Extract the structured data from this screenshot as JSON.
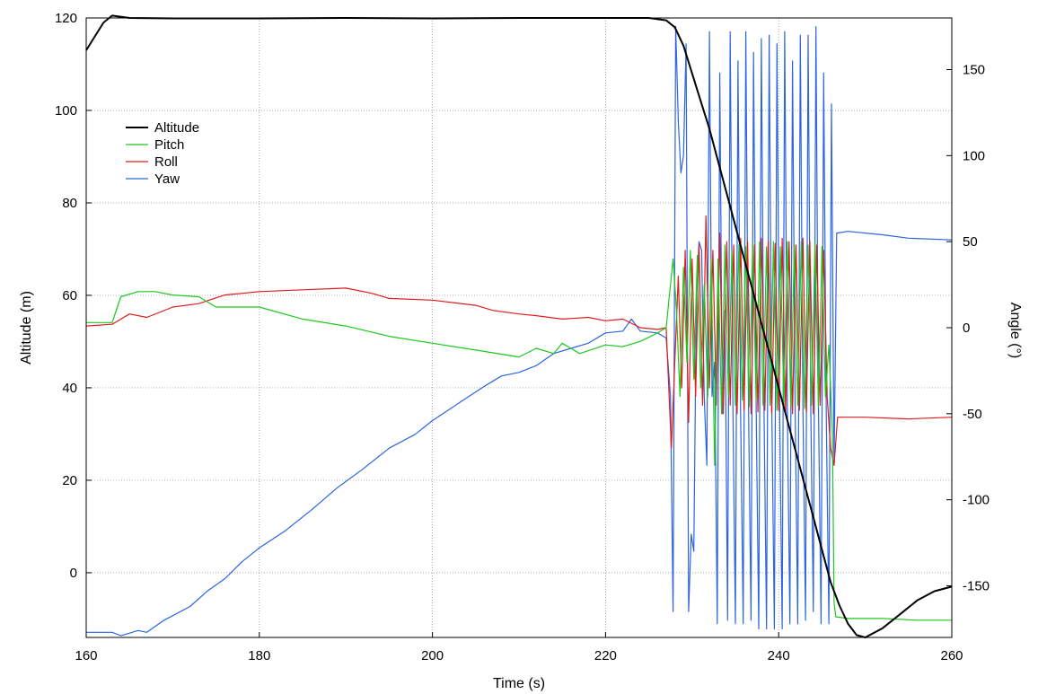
{
  "chart_data": {
    "type": "line",
    "title": "",
    "xlabel": "Time (s)",
    "ylabel_left": "Altitude (m)",
    "ylabel_right": "Angle (°)",
    "xlim": [
      160,
      260
    ],
    "ylim_left": [
      -14,
      120
    ],
    "ylim_right": [
      -180,
      180
    ],
    "x_ticks": [
      "160",
      "180",
      "200",
      "220",
      "240",
      "260"
    ],
    "y_left_ticks": [
      "0",
      "20",
      "40",
      "60",
      "80",
      "100",
      "120"
    ],
    "y_right_ticks": [
      "-150",
      "-100",
      "-50",
      "0",
      "50",
      "100",
      "150"
    ],
    "grid": true,
    "legend_position": "upper-left",
    "legend": [
      "Altitude",
      "Pitch",
      "Roll",
      "Yaw"
    ],
    "series": [
      {
        "name": "Altitude",
        "axis": "left",
        "color": "#000000",
        "points": [
          [
            160,
            113
          ],
          [
            161,
            116
          ],
          [
            162,
            119
          ],
          [
            163,
            120.5
          ],
          [
            165,
            120
          ],
          [
            170,
            119.9
          ],
          [
            180,
            119.9
          ],
          [
            190,
            120
          ],
          [
            200,
            119.9
          ],
          [
            210,
            120
          ],
          [
            220,
            120
          ],
          [
            225,
            120
          ],
          [
            227,
            119.5
          ],
          [
            228,
            118
          ],
          [
            229,
            114
          ],
          [
            230,
            108
          ],
          [
            231,
            102
          ],
          [
            232,
            96
          ],
          [
            233,
            89
          ],
          [
            234,
            82
          ],
          [
            235,
            75
          ],
          [
            236,
            68
          ],
          [
            237,
            61
          ],
          [
            238,
            54
          ],
          [
            239,
            47
          ],
          [
            240,
            40
          ],
          [
            241,
            33
          ],
          [
            242,
            26
          ],
          [
            243,
            19
          ],
          [
            244,
            12
          ],
          [
            245,
            5
          ],
          [
            246,
            -2
          ],
          [
            247,
            -7
          ],
          [
            248,
            -11
          ],
          [
            249,
            -13.5
          ],
          [
            250,
            -14
          ],
          [
            252,
            -12
          ],
          [
            254,
            -9
          ],
          [
            256,
            -6
          ],
          [
            258,
            -4
          ],
          [
            260,
            -3
          ]
        ]
      },
      {
        "name": "Pitch",
        "axis": "right",
        "color": "#1ec81e",
        "points": [
          [
            160,
            3
          ],
          [
            163,
            3
          ],
          [
            164,
            18
          ],
          [
            166,
            21
          ],
          [
            168,
            21
          ],
          [
            170,
            19
          ],
          [
            173,
            18
          ],
          [
            175,
            12
          ],
          [
            180,
            12
          ],
          [
            185,
            5
          ],
          [
            190,
            1
          ],
          [
            195,
            -5
          ],
          [
            200,
            -9
          ],
          [
            205,
            -13
          ],
          [
            210,
            -17
          ],
          [
            212,
            -12
          ],
          [
            214,
            -15
          ],
          [
            215,
            -9
          ],
          [
            217,
            -15
          ],
          [
            220,
            -10
          ],
          [
            222,
            -11
          ],
          [
            224,
            -8
          ],
          [
            226,
            -3
          ],
          [
            227,
            0
          ],
          [
            227.8,
            40
          ],
          [
            228.2,
            10
          ],
          [
            228.6,
            -40
          ],
          [
            229,
            35
          ],
          [
            229.4,
            -20
          ],
          [
            229.8,
            45
          ],
          [
            230.2,
            -30
          ],
          [
            230.6,
            42
          ],
          [
            231,
            -35
          ],
          [
            231.4,
            25
          ],
          [
            231.8,
            -40
          ],
          [
            232.2,
            40
          ],
          [
            232.6,
            -80
          ],
          [
            233,
            40
          ],
          [
            233.4,
            -50
          ],
          [
            233.8,
            48
          ],
          [
            234.2,
            -40
          ],
          [
            234.6,
            45
          ],
          [
            235,
            -45
          ],
          [
            235.4,
            48
          ],
          [
            235.8,
            -42
          ],
          [
            236.2,
            47
          ],
          [
            236.6,
            -46
          ],
          [
            237,
            49
          ],
          [
            237.4,
            -42
          ],
          [
            237.8,
            50
          ],
          [
            238.2,
            -45
          ],
          [
            238.6,
            47
          ],
          [
            239,
            -45
          ],
          [
            239.4,
            50
          ],
          [
            239.8,
            -48
          ],
          [
            240.2,
            47
          ],
          [
            240.6,
            -45
          ],
          [
            241,
            50
          ],
          [
            241.4,
            -46
          ],
          [
            241.8,
            48
          ],
          [
            242.2,
            -45
          ],
          [
            242.6,
            50
          ],
          [
            243,
            -47
          ],
          [
            243.4,
            48
          ],
          [
            243.8,
            -45
          ],
          [
            244.2,
            50
          ],
          [
            244.6,
            -46
          ],
          [
            245,
            47
          ],
          [
            245.4,
            -40
          ],
          [
            245.8,
            -10
          ],
          [
            246.2,
            -60
          ],
          [
            246.4,
            -160
          ],
          [
            246.6,
            -168
          ],
          [
            248,
            -169
          ],
          [
            252,
            -169
          ],
          [
            256,
            -170
          ],
          [
            260,
            -170
          ]
        ]
      },
      {
        "name": "Roll",
        "axis": "right",
        "color": "#e01b1b",
        "points": [
          [
            160,
            1
          ],
          [
            163,
            2
          ],
          [
            165,
            8
          ],
          [
            167,
            6
          ],
          [
            170,
            12
          ],
          [
            173,
            14
          ],
          [
            176,
            19
          ],
          [
            180,
            21
          ],
          [
            185,
            22
          ],
          [
            190,
            23
          ],
          [
            193,
            20
          ],
          [
            195,
            17
          ],
          [
            200,
            16
          ],
          [
            205,
            13
          ],
          [
            207,
            10
          ],
          [
            210,
            8
          ],
          [
            212,
            7
          ],
          [
            215,
            5
          ],
          [
            218,
            6
          ],
          [
            220,
            4
          ],
          [
            222,
            5
          ],
          [
            224,
            0
          ],
          [
            226,
            -1
          ],
          [
            227,
            0
          ],
          [
            227.6,
            -70
          ],
          [
            228,
            -20
          ],
          [
            228.4,
            30
          ],
          [
            228.8,
            -35
          ],
          [
            229.2,
            45
          ],
          [
            229.6,
            -55
          ],
          [
            230,
            40
          ],
          [
            230.4,
            -40
          ],
          [
            230.8,
            48
          ],
          [
            231.2,
            -45
          ],
          [
            231.6,
            65
          ],
          [
            232,
            -35
          ],
          [
            232.4,
            45
          ],
          [
            232.8,
            -45
          ],
          [
            233.2,
            55
          ],
          [
            233.6,
            -50
          ],
          [
            234,
            50
          ],
          [
            234.4,
            -45
          ],
          [
            234.8,
            48
          ],
          [
            235.2,
            -50
          ],
          [
            235.6,
            52
          ],
          [
            236,
            -48
          ],
          [
            236.4,
            50
          ],
          [
            236.8,
            -50
          ],
          [
            237.2,
            48
          ],
          [
            237.6,
            -49
          ],
          [
            238,
            52
          ],
          [
            238.4,
            -48
          ],
          [
            238.8,
            50
          ],
          [
            239.2,
            -50
          ],
          [
            239.6,
            49
          ],
          [
            240,
            -48
          ],
          [
            240.4,
            52
          ],
          [
            240.8,
            -49
          ],
          [
            241.2,
            50
          ],
          [
            241.6,
            -50
          ],
          [
            242,
            48
          ],
          [
            242.4,
            -48
          ],
          [
            242.8,
            52
          ],
          [
            243.2,
            -49
          ],
          [
            243.6,
            50
          ],
          [
            244,
            -50
          ],
          [
            244.4,
            48
          ],
          [
            244.8,
            -45
          ],
          [
            245.2,
            45
          ],
          [
            245.6,
            -40
          ],
          [
            246,
            -70
          ],
          [
            246.4,
            -80
          ],
          [
            246.8,
            -52
          ],
          [
            250,
            -52
          ],
          [
            255,
            -53
          ],
          [
            260,
            -52
          ]
        ]
      },
      {
        "name": "Yaw",
        "axis": "right",
        "color": "#2c64e2",
        "points": [
          [
            160,
            -177
          ],
          [
            163,
            -177
          ],
          [
            164,
            -179
          ],
          [
            166,
            -176
          ],
          [
            167,
            -177
          ],
          [
            169,
            -170
          ],
          [
            172,
            -162
          ],
          [
            174,
            -153
          ],
          [
            176,
            -146
          ],
          [
            178,
            -136
          ],
          [
            180,
            -128
          ],
          [
            183,
            -118
          ],
          [
            186,
            -106
          ],
          [
            189,
            -93
          ],
          [
            192,
            -82
          ],
          [
            195,
            -70
          ],
          [
            198,
            -62
          ],
          [
            200,
            -54
          ],
          [
            203,
            -44
          ],
          [
            206,
            -34
          ],
          [
            208,
            -28
          ],
          [
            210,
            -26
          ],
          [
            212,
            -22
          ],
          [
            214,
            -15
          ],
          [
            216,
            -12
          ],
          [
            218,
            -9
          ],
          [
            220,
            -3
          ],
          [
            222,
            -2
          ],
          [
            223,
            5
          ],
          [
            224,
            -2
          ],
          [
            226,
            -3
          ],
          [
            227,
            -6
          ],
          [
            227.5,
            -40
          ],
          [
            227.8,
            -165
          ],
          [
            228.1,
            175
          ],
          [
            228.4,
            120
          ],
          [
            228.7,
            90
          ],
          [
            229,
            100
          ],
          [
            229.3,
            165
          ],
          [
            229.6,
            -165
          ],
          [
            229.9,
            -120
          ],
          [
            230.2,
            -130
          ],
          [
            230.5,
            20
          ],
          [
            230.8,
            50
          ],
          [
            231.1,
            45
          ],
          [
            231.4,
            -40
          ],
          [
            231.7,
            -80
          ],
          [
            232,
            172
          ],
          [
            232.3,
            -40
          ],
          [
            232.6,
            -20
          ],
          [
            232.9,
            -172
          ],
          [
            233.2,
            148
          ],
          [
            233.5,
            -50
          ],
          [
            233.8,
            10
          ],
          [
            234.1,
            -170
          ],
          [
            234.4,
            172
          ],
          [
            234.7,
            -40
          ],
          [
            235,
            -172
          ],
          [
            235.3,
            155
          ],
          [
            235.6,
            -50
          ],
          [
            235.9,
            -172
          ],
          [
            236.2,
            172
          ],
          [
            236.5,
            -40
          ],
          [
            236.8,
            -170
          ],
          [
            237.1,
            160
          ],
          [
            237.4,
            -45
          ],
          [
            237.7,
            -175
          ],
          [
            238,
            168
          ],
          [
            238.3,
            -45
          ],
          [
            238.6,
            -175
          ],
          [
            238.9,
            170
          ],
          [
            239.2,
            -45
          ],
          [
            239.5,
            -175
          ],
          [
            239.8,
            165
          ],
          [
            240.1,
            -45
          ],
          [
            240.4,
            -175
          ],
          [
            240.7,
            172
          ],
          [
            241,
            -45
          ],
          [
            241.3,
            -172
          ],
          [
            241.6,
            155
          ],
          [
            241.9,
            -45
          ],
          [
            242.2,
            -172
          ],
          [
            242.5,
            170
          ],
          [
            242.8,
            -45
          ],
          [
            243.1,
            -170
          ],
          [
            243.4,
            170
          ],
          [
            243.7,
            -45
          ],
          [
            244,
            -165
          ],
          [
            244.3,
            175
          ],
          [
            244.6,
            -45
          ],
          [
            244.9,
            -172
          ],
          [
            245.2,
            148
          ],
          [
            245.5,
            -50
          ],
          [
            245.8,
            -172
          ],
          [
            246.1,
            130
          ],
          [
            246.4,
            -80
          ],
          [
            246.7,
            55
          ],
          [
            248,
            56
          ],
          [
            252,
            54
          ],
          [
            255,
            52
          ],
          [
            260,
            51
          ]
        ]
      }
    ]
  }
}
